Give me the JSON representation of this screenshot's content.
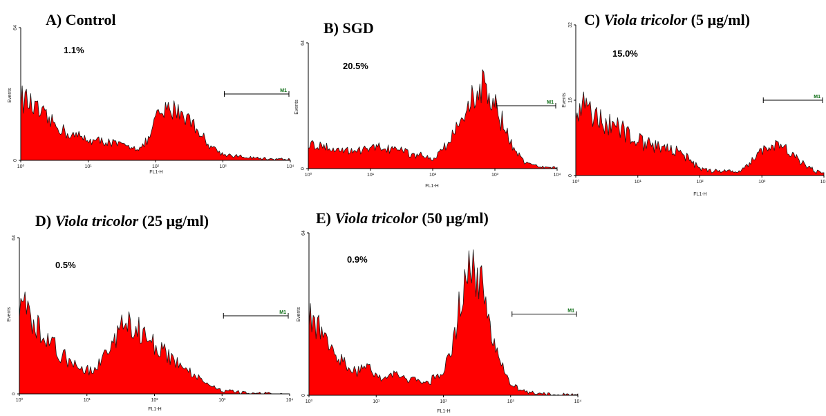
{
  "colors": {
    "fill": "#ff0000",
    "outline": "#1a1a1a",
    "axis": "#000000",
    "marker_label": "#0a6b12"
  },
  "chart_data": [
    {
      "type": "area",
      "title_prefix": "A) ",
      "title_italic": "",
      "title_suffix": "Control",
      "percent_label": "1.1%",
      "xlabel": "FL1-H",
      "ylabel": "Events",
      "x_scale": "log",
      "xlim": [
        1,
        10000
      ],
      "x_ticks": [
        "10⁰",
        "10¹",
        "10²",
        "10³",
        "10⁴"
      ],
      "ylim": [
        0,
        64
      ],
      "y_ticks": [
        "0",
        "64"
      ],
      "grid": false,
      "marker": {
        "label": "M1",
        "x_start": 1000,
        "x_end": 10000
      },
      "x": [
        1,
        1.5,
        2,
        3,
        5,
        8,
        12,
        20,
        35,
        60,
        80,
        100,
        150,
        200,
        300,
        400,
        600,
        1000,
        2000,
        4000,
        10000
      ],
      "values": [
        31,
        26,
        22,
        18,
        13,
        11,
        9.5,
        9,
        7,
        6,
        10,
        20,
        24,
        25,
        21,
        16,
        8,
        3,
        1.5,
        0.8,
        0.4
      ]
    },
    {
      "type": "area",
      "title_prefix": "B) ",
      "title_italic": "",
      "title_suffix": "SGD",
      "percent_label": "20.5%",
      "xlabel": "FL1-H",
      "ylabel": "Events",
      "x_scale": "log",
      "xlim": [
        1,
        10000
      ],
      "x_ticks": [
        "10⁰",
        "10¹",
        "10²",
        "10³",
        "10⁴"
      ],
      "ylim": [
        0,
        64
      ],
      "y_ticks": [
        "0",
        "64"
      ],
      "grid": false,
      "marker": {
        "label": "M1",
        "x_start": 1000,
        "x_end": 10000
      },
      "x": [
        1,
        2,
        4,
        8,
        15,
        30,
        60,
        100,
        150,
        250,
        400,
        600,
        800,
        1000,
        1300,
        2000,
        3000,
        5000,
        10000
      ],
      "values": [
        13,
        11,
        10,
        9,
        11,
        9,
        7,
        5,
        10,
        22,
        34,
        42,
        40,
        34,
        24,
        10,
        3,
        1,
        0.3
      ]
    },
    {
      "type": "area",
      "title_prefix": "C) ",
      "title_italic": "Viola tricolor",
      "title_suffix": " (5 µg/ml)",
      "percent_label": "15.0%",
      "xlabel": "FL1-H",
      "ylabel": "Events",
      "x_scale": "log",
      "xlim": [
        1,
        10000
      ],
      "x_ticks": [
        "10⁰",
        "10¹",
        "10²",
        "10³",
        "10⁴"
      ],
      "ylim": [
        0,
        32
      ],
      "y_ticks": [
        "0",
        "16",
        "32"
      ],
      "grid": false,
      "marker": {
        "label": "M1",
        "x_start": 1000,
        "x_end": 10000
      },
      "x": [
        1,
        1.5,
        2,
        3,
        5,
        8,
        12,
        20,
        35,
        60,
        100,
        150,
        250,
        400,
        600,
        1000,
        1500,
        2500,
        4000,
        7000,
        10000
      ],
      "values": [
        14,
        15,
        13,
        11,
        10,
        8,
        7,
        6,
        5.5,
        4,
        1.5,
        1,
        1,
        0.8,
        2,
        5.5,
        6.5,
        5.5,
        3,
        1,
        0.5
      ]
    },
    {
      "type": "area",
      "title_prefix": "D) ",
      "title_italic": "Viola tricolor",
      "title_suffix": " (25 µg/ml)",
      "percent_label": "0.5%",
      "xlabel": "FL1-H",
      "ylabel": "Events",
      "x_scale": "log",
      "xlim": [
        1,
        10000
      ],
      "x_ticks": [
        "10⁰",
        "10¹",
        "10²",
        "10³",
        "10⁴"
      ],
      "ylim": [
        0,
        64
      ],
      "y_ticks": [
        "0",
        "64"
      ],
      "grid": false,
      "marker": {
        "label": "M1",
        "x_start": 1000,
        "x_end": 10000
      },
      "x": [
        1,
        1.5,
        2,
        3,
        5,
        8,
        12,
        20,
        30,
        40,
        60,
        100,
        150,
        250,
        400,
        600,
        1000,
        2000,
        4000,
        10000
      ],
      "values": [
        38,
        32,
        27,
        20,
        14,
        10,
        9,
        16,
        26,
        29,
        27,
        20,
        16,
        12,
        8,
        4,
        1.5,
        0.5,
        0.2,
        0.1
      ]
    },
    {
      "type": "area",
      "title_prefix": "E) ",
      "title_italic": "Viola tricolor",
      "title_suffix": " (50 µg/ml)",
      "percent_label": "0.9%",
      "xlabel": "FL1-H",
      "ylabel": "Events",
      "x_scale": "log",
      "xlim": [
        1,
        10000
      ],
      "x_ticks": [
        "10⁰",
        "10¹",
        "10²",
        "10³",
        "10⁴"
      ],
      "ylim": [
        0,
        64
      ],
      "y_ticks": [
        "0",
        "64"
      ],
      "grid": false,
      "marker": {
        "label": "M1",
        "x_start": 1000,
        "x_end": 10000
      },
      "x": [
        1,
        1.5,
        2,
        3,
        5,
        8,
        12,
        20,
        35,
        60,
        100,
        150,
        200,
        250,
        300,
        400,
        600,
        1000,
        2000,
        4000,
        10000
      ],
      "values": [
        32,
        26,
        20,
        14,
        9,
        11,
        7,
        8,
        6,
        5,
        9,
        25,
        45,
        52,
        50,
        40,
        18,
        4,
        1,
        0.3,
        0.1
      ]
    }
  ]
}
